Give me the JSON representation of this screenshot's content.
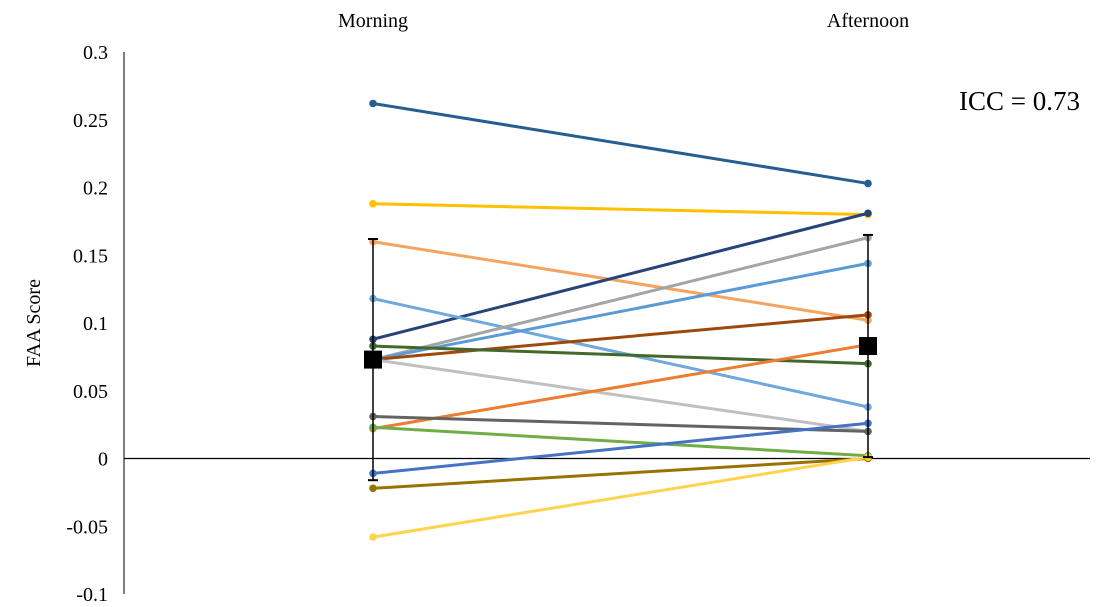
{
  "chart_data": {
    "type": "line",
    "title": "",
    "xlabel": "",
    "ylabel": "FAA Score",
    "categories": [
      "Morning",
      "Afternoon"
    ],
    "ylim": [
      -0.1,
      0.3
    ],
    "yticks": [
      0.3,
      0.25,
      0.2,
      0.15,
      0.1,
      0.05,
      0,
      -0.05,
      -0.1
    ],
    "ytick_labels": [
      "0.3",
      "0.25",
      "0.2",
      "0.15",
      "0.1",
      "0.05",
      "0",
      "-0.05",
      "-0.1"
    ],
    "grid": false,
    "annotation": "ICC = 0.73",
    "series": [
      {
        "values": [
          0.262,
          0.203
        ],
        "color": "#255e91"
      },
      {
        "values": [
          0.188,
          0.18
        ],
        "color": "#ffc000"
      },
      {
        "values": [
          0.16,
          0.102
        ],
        "color": "#f4a460"
      },
      {
        "values": [
          0.088,
          0.181
        ],
        "color": "#264478"
      },
      {
        "values": [
          0.118,
          0.038
        ],
        "color": "#6fa8dc"
      },
      {
        "values": [
          0.073,
          0.163
        ],
        "color": "#a5a5a5"
      },
      {
        "values": [
          0.073,
          0.144
        ],
        "color": "#5b9bd5"
      },
      {
        "values": [
          0.073,
          0.106
        ],
        "color": "#9e480e"
      },
      {
        "values": [
          0.083,
          0.07
        ],
        "color": "#43682b"
      },
      {
        "values": [
          0.073,
          0.02
        ],
        "color": "#c0c0c0"
      },
      {
        "values": [
          0.022,
          0.084
        ],
        "color": "#ed7d31"
      },
      {
        "values": [
          0.031,
          0.02
        ],
        "color": "#636363"
      },
      {
        "values": [
          0.023,
          0.002
        ],
        "color": "#70ad47"
      },
      {
        "values": [
          -0.011,
          0.026
        ],
        "color": "#4472c4"
      },
      {
        "values": [
          -0.022,
          0.0
        ],
        "color": "#997300"
      },
      {
        "values": [
          -0.058,
          0.001
        ],
        "color": "#ffd44d"
      }
    ],
    "mean": {
      "values": [
        0.073,
        0.083
      ],
      "error": [
        0.089,
        0.082
      ],
      "color": "#000000"
    }
  }
}
